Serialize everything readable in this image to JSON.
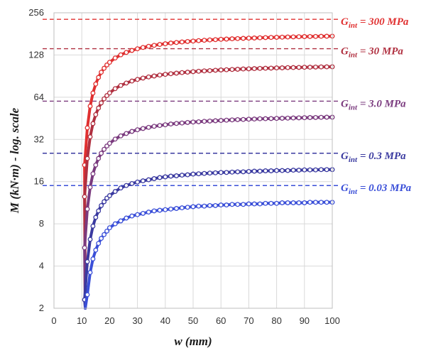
{
  "chart_data": {
    "type": "line",
    "title": "",
    "xlabel": "w (mm)",
    "ylabel": "M (kN·m) - log. scale",
    "xlim": [
      0,
      100
    ],
    "ylim": [
      2,
      256
    ],
    "y_scale": "log2",
    "grid": true,
    "xticks": [
      "0",
      "10",
      "20",
      "30",
      "40",
      "50",
      "60",
      "70",
      "80",
      "90",
      "100"
    ],
    "yticks": [
      "2",
      "4",
      "8",
      "16",
      "32",
      "64",
      "128",
      "256"
    ],
    "legend": "labels at right end of each curve",
    "x": [
      11,
      12,
      13,
      14,
      15,
      16,
      17,
      18,
      19,
      20,
      22,
      24,
      26,
      28,
      30,
      32,
      34,
      36,
      38,
      40,
      42,
      44,
      46,
      48,
      50,
      52,
      54,
      56,
      58,
      60,
      62,
      64,
      66,
      68,
      70,
      72,
      74,
      76,
      78,
      80,
      82,
      84,
      86,
      88,
      90,
      92,
      94,
      96,
      98,
      100
    ],
    "series": [
      {
        "name": "G_int = 300 MPa",
        "label_main": "G",
        "label_sub": "int",
        "label_rest": " = 300 MPa",
        "color": "#e03030",
        "asymptote": 230,
        "values": [
          21.0,
          38.7,
          55.2,
          68.5,
          79.5,
          88.6,
          96.4,
          102.9,
          108.6,
          113.6,
          121.8,
          128.3,
          133.6,
          138.0,
          141.7,
          144.9,
          147.6,
          150.0,
          152.1,
          154.0,
          155.7,
          157.2,
          158.6,
          159.9,
          161.0,
          162.1,
          163.1,
          164.0,
          164.8,
          165.6,
          166.3,
          167.0,
          167.6,
          168.2,
          168.8,
          169.3,
          169.8,
          170.3,
          170.8,
          171.2,
          171.6,
          172.0,
          172.4,
          172.7,
          173.1,
          173.4,
          173.7,
          174.0,
          174.3,
          174.5
        ]
      },
      {
        "name": "G_int = 30 MPa",
        "label_main": "G",
        "label_sub": "int",
        "label_rest": " = 30 MPa",
        "color": "#b03040",
        "asymptote": 142,
        "values": [
          12.5,
          23.4,
          33.4,
          41.5,
          48.1,
          53.6,
          58.3,
          62.3,
          65.7,
          68.7,
          73.7,
          77.6,
          80.8,
          83.5,
          85.7,
          87.6,
          89.3,
          90.7,
          92.0,
          93.1,
          94.1,
          95.0,
          95.9,
          96.6,
          97.3,
          98.0,
          98.6,
          99.1,
          99.6,
          100.1,
          100.5,
          100.9,
          101.3,
          101.7,
          102.0,
          102.4,
          102.7,
          103.0,
          103.2,
          103.5,
          103.7,
          104.0,
          104.2,
          104.4,
          104.6,
          104.8,
          105.0,
          105.2,
          105.4,
          105.5
        ]
      },
      {
        "name": "G_int = 3.0 MPa",
        "label_main": "G",
        "label_sub": "int",
        "label_rest": " = 3.0 MPa",
        "color": "#7a3a7e",
        "asymptote": 60,
        "values": [
          5.4,
          10.2,
          14.6,
          18.2,
          21.0,
          23.4,
          25.5,
          27.2,
          28.7,
          30.0,
          32.2,
          33.9,
          35.3,
          36.5,
          37.5,
          38.3,
          39.0,
          39.7,
          40.2,
          40.7,
          41.2,
          41.6,
          41.9,
          42.3,
          42.6,
          42.8,
          43.1,
          43.3,
          43.5,
          43.7,
          43.9,
          44.1,
          44.3,
          44.4,
          44.6,
          44.7,
          44.9,
          45.0,
          45.1,
          45.2,
          45.3,
          45.4,
          45.5,
          45.6,
          45.7,
          45.8,
          45.9,
          46.0,
          46.1,
          46.1
        ]
      },
      {
        "name": "G_int = 0.3 MPa",
        "label_main": "G",
        "label_sub": "int",
        "label_rest": " = 0.3 MPa",
        "color": "#3a3aa0",
        "asymptote": 25.5,
        "values": [
          2.3,
          4.3,
          6.2,
          7.7,
          8.9,
          9.9,
          10.8,
          11.5,
          12.2,
          12.7,
          13.6,
          14.4,
          15.0,
          15.5,
          15.9,
          16.2,
          16.5,
          16.8,
          17.1,
          17.3,
          17.5,
          17.6,
          17.8,
          17.9,
          18.1,
          18.2,
          18.3,
          18.4,
          18.5,
          18.6,
          18.6,
          18.7,
          18.8,
          18.8,
          18.9,
          19.0,
          19.0,
          19.1,
          19.1,
          19.2,
          19.2,
          19.2,
          19.3,
          19.3,
          19.4,
          19.4,
          19.4,
          19.5,
          19.5,
          19.5
        ]
      },
      {
        "name": "G_int = 0.03 MPa",
        "label_main": "G",
        "label_sub": "int",
        "label_rest": " = 0.03 MPa",
        "color": "#3a4fd8",
        "asymptote": 15,
        "values": [
          1.3,
          2.5,
          3.6,
          4.5,
          5.2,
          5.8,
          6.3,
          6.7,
          7.1,
          7.5,
          8.0,
          8.4,
          8.8,
          9.1,
          9.3,
          9.5,
          9.7,
          9.9,
          10.0,
          10.1,
          10.2,
          10.3,
          10.4,
          10.5,
          10.6,
          10.7,
          10.7,
          10.8,
          10.8,
          10.9,
          10.9,
          11.0,
          11.0,
          11.0,
          11.1,
          11.1,
          11.1,
          11.2,
          11.2,
          11.2,
          11.3,
          11.3,
          11.3,
          11.3,
          11.3,
          11.4,
          11.4,
          11.4,
          11.4,
          11.4
        ]
      }
    ]
  }
}
